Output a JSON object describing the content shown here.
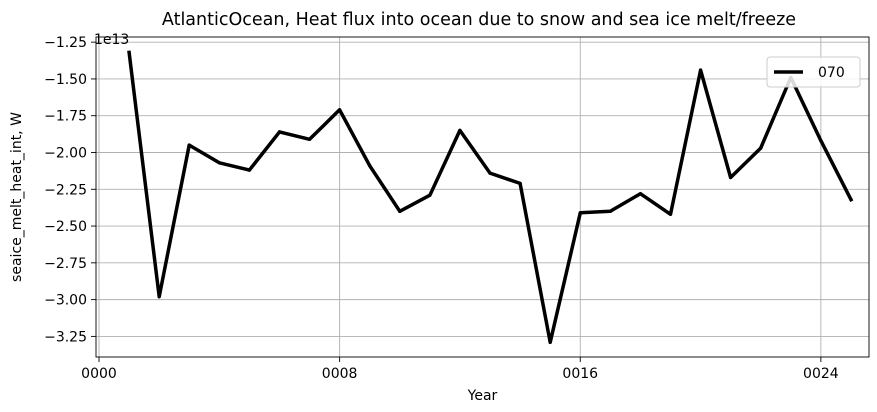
{
  "chart_data": {
    "type": "line",
    "title": "AtlanticOcean, Heat flux into ocean due to snow and sea ice melt/freeze",
    "xlabel": "Year",
    "ylabel": "seaice_melt_heat_int, W",
    "y_offset_label": "1e13",
    "y_scale": 10000000000000.0,
    "xlim": [
      -0.1,
      25.6
    ],
    "ylim": [
      -3.39,
      -1.215
    ],
    "x_ticks": [
      0,
      8,
      16,
      24
    ],
    "x_tick_labels": [
      "0000",
      "0008",
      "0016",
      "0024"
    ],
    "y_ticks": [
      -3.25,
      -3.0,
      -2.75,
      -2.5,
      -2.25,
      -2.0,
      -1.75,
      -1.5,
      -1.25
    ],
    "y_tick_labels": [
      "−3.25",
      "−3.00",
      "−2.75",
      "−2.50",
      "−2.25",
      "−2.00",
      "−1.75",
      "−1.50",
      "−1.25"
    ],
    "grid": true,
    "legend_position": "top-right",
    "series": [
      {
        "name": "070",
        "color": "#000000",
        "x": [
          1,
          2,
          3,
          4,
          5,
          6,
          7,
          8,
          9,
          10,
          11,
          12,
          13,
          14,
          15,
          16,
          17,
          18,
          19,
          20,
          21,
          22,
          23,
          24,
          25
        ],
        "values": [
          -1.32,
          -2.98,
          -1.95,
          -2.07,
          -2.12,
          -1.86,
          -1.91,
          -1.71,
          -2.09,
          -2.4,
          -2.29,
          -1.85,
          -2.14,
          -2.21,
          -3.29,
          -2.41,
          -2.4,
          -2.28,
          -2.42,
          -1.44,
          -2.17,
          -1.97,
          -1.49,
          -1.92,
          -2.32
        ]
      }
    ]
  }
}
